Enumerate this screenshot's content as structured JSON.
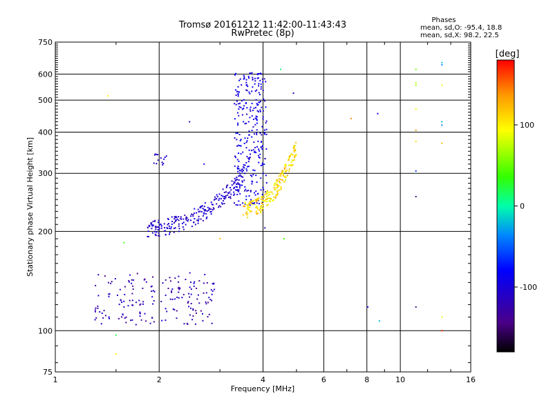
{
  "chart_data": {
    "type": "scatter",
    "title": "Tromsø 20161212 11:42:00-11:43:43",
    "subtitle": "RwPretec (8p)",
    "stats_title": "Phases",
    "stats_lines": [
      "mean, sd,O: -95.4, 18.8",
      "mean, sd,X:  98.2, 22.5"
    ],
    "xlabel": "Frequency [MHz]",
    "ylabel": "Stationary phase Virtual Height [km]",
    "x_scale": "log",
    "y_scale": "log",
    "xlim": [
      1,
      16
    ],
    "ylim": [
      75,
      750
    ],
    "grid": true,
    "x_ticks": [
      {
        "value": 1,
        "label": "1"
      },
      {
        "value": 2,
        "label": "2"
      },
      {
        "value": 4,
        "label": "4"
      },
      {
        "value": 6,
        "label": "6"
      },
      {
        "value": 8,
        "label": "8"
      },
      {
        "value": 10,
        "label": "10"
      },
      {
        "value": 16,
        "label": "16"
      }
    ],
    "y_ticks": [
      {
        "value": 75,
        "label": "75"
      },
      {
        "value": 100,
        "label": "100"
      },
      {
        "value": 200,
        "label": "200"
      },
      {
        "value": 300,
        "label": "300"
      },
      {
        "value": 400,
        "label": "400"
      },
      {
        "value": 500,
        "label": "500"
      },
      {
        "value": 600,
        "label": "600"
      },
      {
        "value": 750,
        "label": "750"
      }
    ],
    "colorbar": {
      "label": "[deg]",
      "range": [
        -180,
        180
      ],
      "ticks": [
        {
          "value": 100,
          "label": "100"
        },
        {
          "value": 0,
          "label": "0"
        },
        {
          "value": -100,
          "label": "-100"
        }
      ]
    },
    "clusters": [
      {
        "name": "E-region low (O)",
        "x_range": [
          1.3,
          2.9
        ],
        "h_range": [
          104,
          150
        ],
        "phase_range": [
          -145,
          -95
        ],
        "n": 180
      },
      {
        "name": "Sporadic near 2 MHz",
        "x_range": [
          1.9,
          2.1
        ],
        "h_range": [
          318,
          345
        ],
        "phase_range": [
          -125,
          -95
        ],
        "n": 14
      },
      {
        "name": "F trace O",
        "x_range": [
          1.85,
          3.55
        ],
        "curve": {
          "h0": 205,
          "h1": 300
        },
        "phase_range": [
          -125,
          -90
        ],
        "n": 230
      },
      {
        "name": "F spread O near 3.5-4 MHz",
        "x_range": [
          3.3,
          4.1
        ],
        "h_range": [
          240,
          610
        ],
        "phase_range": [
          -115,
          -75
        ],
        "n": 300
      },
      {
        "name": "F trace X",
        "x_range": [
          3.5,
          5.0
        ],
        "curve": {
          "h0": 232,
          "h1": 360
        },
        "phase_range": [
          80,
          135
        ],
        "n": 220
      }
    ],
    "points": [
      {
        "x": 1.42,
        "y": 515,
        "phase": 100
      },
      {
        "x": 1.58,
        "y": 185,
        "phase": 40
      },
      {
        "x": 1.5,
        "y": 85,
        "phase": 100
      },
      {
        "x": 1.5,
        "y": 97,
        "phase": 20
      },
      {
        "x": 2.45,
        "y": 430,
        "phase": -110
      },
      {
        "x": 2.7,
        "y": 320,
        "phase": -100
      },
      {
        "x": 3.0,
        "y": 190,
        "phase": 120
      },
      {
        "x": 3.45,
        "y": 475,
        "phase": -110
      },
      {
        "x": 4.05,
        "y": 205,
        "phase": -120
      },
      {
        "x": 4.5,
        "y": 620,
        "phase": 10
      },
      {
        "x": 4.6,
        "y": 190,
        "phase": 40
      },
      {
        "x": 4.9,
        "y": 525,
        "phase": -110
      },
      {
        "x": 7.2,
        "y": 440,
        "phase": 140
      },
      {
        "x": 8.05,
        "y": 118,
        "phase": -100
      },
      {
        "x": 8.6,
        "y": 455,
        "phase": -95
      },
      {
        "x": 8.7,
        "y": 107,
        "phase": -20
      },
      {
        "x": 11.1,
        "y": 620,
        "phase": 50
      },
      {
        "x": 11.1,
        "y": 565,
        "phase": 80
      },
      {
        "x": 11.1,
        "y": 555,
        "phase": 60
      },
      {
        "x": 11.1,
        "y": 470,
        "phase": 100
      },
      {
        "x": 11.1,
        "y": 405,
        "phase": 140
      },
      {
        "x": 11.1,
        "y": 375,
        "phase": 110
      },
      {
        "x": 11.1,
        "y": 305,
        "phase": -60
      },
      {
        "x": 11.1,
        "y": 255,
        "phase": -140
      },
      {
        "x": 11.1,
        "y": 118,
        "phase": -140
      },
      {
        "x": 13.2,
        "y": 650,
        "phase": -20
      },
      {
        "x": 13.2,
        "y": 640,
        "phase": -40
      },
      {
        "x": 13.2,
        "y": 555,
        "phase": 90
      },
      {
        "x": 13.2,
        "y": 430,
        "phase": -20
      },
      {
        "x": 13.2,
        "y": 420,
        "phase": -40
      },
      {
        "x": 13.2,
        "y": 370,
        "phase": 120
      },
      {
        "x": 13.2,
        "y": 110,
        "phase": 90
      },
      {
        "x": 13.2,
        "y": 100,
        "phase": 170
      }
    ]
  }
}
